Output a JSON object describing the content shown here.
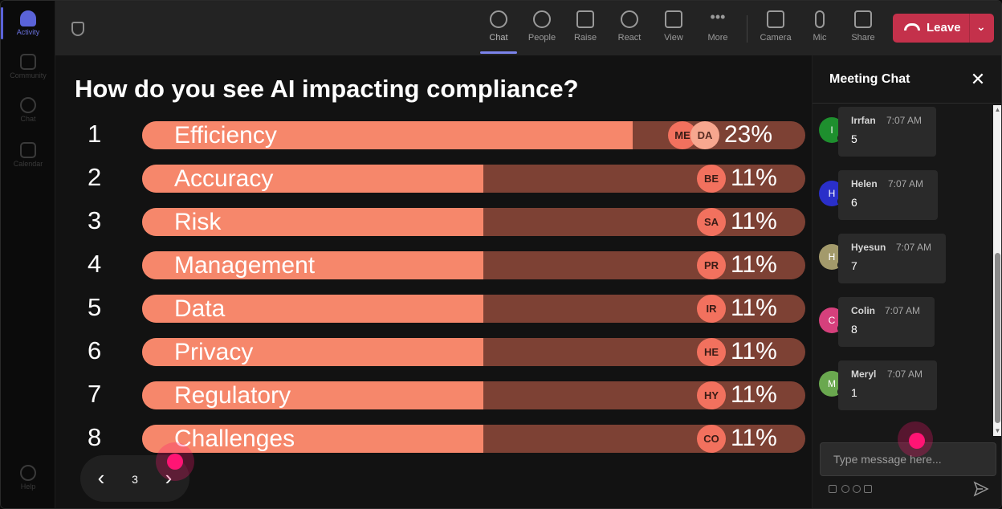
{
  "rail": {
    "items": [
      {
        "label": "Activity",
        "icon": "bell-icon",
        "active": true
      },
      {
        "label": "Community",
        "icon": "community-icon"
      },
      {
        "label": "Chat",
        "icon": "chat-icon"
      },
      {
        "label": "Calendar",
        "icon": "calendar-icon"
      },
      {
        "label": "Help",
        "icon": "help-icon"
      }
    ]
  },
  "toolbar": {
    "chat": "Chat",
    "people": "People",
    "raise": "Raise",
    "react": "React",
    "view": "View",
    "more": "More",
    "camera": "Camera",
    "mic": "Mic",
    "share": "Share",
    "leave": "Leave"
  },
  "poll": {
    "question": "How do you see AI impacting compliance?",
    "options": [
      {
        "num": "1",
        "label": "Efficiency",
        "percent": "23%",
        "fill": 0.74,
        "avatars": [
          "ME",
          "DA"
        ]
      },
      {
        "num": "2",
        "label": "Accuracy",
        "percent": "11%",
        "fill": 0.515,
        "avatars": [
          "BE"
        ]
      },
      {
        "num": "3",
        "label": "Risk",
        "percent": "11%",
        "fill": 0.515,
        "avatars": [
          "SA"
        ]
      },
      {
        "num": "4",
        "label": "Management",
        "percent": "11%",
        "fill": 0.515,
        "avatars": [
          "PR"
        ]
      },
      {
        "num": "5",
        "label": "Data",
        "percent": "11%",
        "fill": 0.515,
        "avatars": [
          "IR"
        ]
      },
      {
        "num": "6",
        "label": "Privacy",
        "percent": "11%",
        "fill": 0.515,
        "avatars": [
          "HE"
        ]
      },
      {
        "num": "7",
        "label": "Regulatory",
        "percent": "11%",
        "fill": 0.515,
        "avatars": [
          "HY"
        ]
      },
      {
        "num": "8",
        "label": "Challenges",
        "percent": "11%",
        "fill": 0.515,
        "avatars": [
          "CO"
        ]
      }
    ]
  },
  "pager": {
    "page": "3",
    "prev": "‹",
    "next": "›"
  },
  "chat": {
    "title": "Meeting Chat",
    "close": "✕",
    "messages": [
      {
        "initial": "I",
        "name": "Irrfan",
        "time": "7:07 AM",
        "text": "5",
        "color": "#1e8f2e"
      },
      {
        "initial": "H",
        "name": "Helen",
        "time": "7:07 AM",
        "text": "6",
        "color": "#2a2fc9"
      },
      {
        "initial": "H",
        "name": "Hyesun",
        "time": "7:07 AM",
        "text": "7",
        "color": "#a39a6b"
      },
      {
        "initial": "C",
        "name": "Colin",
        "time": "7:07 AM",
        "text": "8",
        "color": "#d6407c"
      },
      {
        "initial": "M",
        "name": "Meryl",
        "time": "7:07 AM",
        "text": "1",
        "color": "#6aa84f"
      }
    ],
    "placeholder": "Type message here..."
  },
  "colors": {
    "bar_fill": "#f6876b",
    "bar_track": "#7d4134",
    "avatar": "#f2715e",
    "leave": "#c4314b",
    "accent": "#7b83eb"
  }
}
